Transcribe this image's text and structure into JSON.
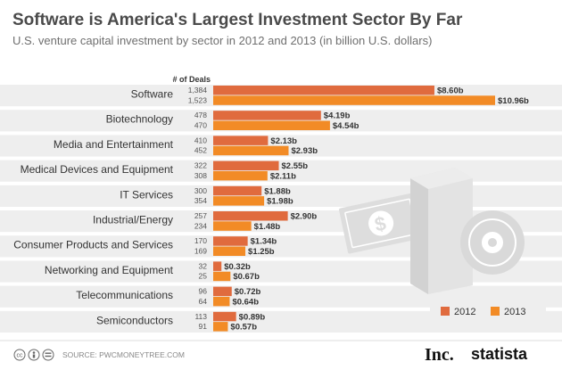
{
  "colors": {
    "s2012": "#e06b3e",
    "s2013": "#f28b26",
    "band": "#eeeeee",
    "icon": "#dddddd",
    "icon_dark": "#cfcfcf"
  },
  "footer": {
    "source": "SOURCE: PWCMONEYTREE.COM",
    "inc_logo": "Inc.",
    "statista_logo": "statista",
    "cc_icons": [
      "creative-commons-icon",
      "attribution-icon",
      "no-derivatives-icon"
    ]
  },
  "chart_data": {
    "type": "bar",
    "orientation": "horizontal",
    "title": "Software is America's Largest Investment Sector By Far",
    "subtitle": "U.S. venture capital investment by sector in 2012 and 2013 (in billion U.S. dollars)",
    "deals_header": "# of Deals",
    "xlim": [
      0,
      11
    ],
    "categories": [
      "Software",
      "Biotechnology",
      "Media and Entertainment",
      "Medical Devices and Equipment",
      "IT Services",
      "Industrial/Energy",
      "Consumer Products and Services",
      "Networking and Equipment",
      "Telecommunications",
      "Semiconductors"
    ],
    "series": [
      {
        "name": "2012",
        "color": "#e06b3e",
        "values": [
          8.6,
          4.19,
          2.13,
          2.55,
          1.88,
          2.9,
          1.34,
          0.32,
          0.72,
          0.89
        ],
        "labels": [
          "$8.60b",
          "$4.19b",
          "$2.13b",
          "$2.55b",
          "$1.88b",
          "$2.90b",
          "$1.34b",
          "$0.32b",
          "$0.72b",
          "$0.89b"
        ],
        "deals": [
          "1,384",
          "478",
          "410",
          "322",
          "300",
          "257",
          "170",
          "32",
          "96",
          "113"
        ]
      },
      {
        "name": "2013",
        "color": "#f28b26",
        "values": [
          10.96,
          4.54,
          2.93,
          2.11,
          1.98,
          1.48,
          1.25,
          0.67,
          0.64,
          0.57
        ],
        "labels": [
          "$10.96b",
          "$4.54b",
          "$2.93b",
          "$2.11b",
          "$1.98b",
          "$1.48b",
          "$1.25b",
          "$0.67b",
          "$0.64b",
          "$0.57b"
        ],
        "deals": [
          "1,523",
          "470",
          "452",
          "308",
          "354",
          "234",
          "169",
          "25",
          "64",
          "91"
        ]
      }
    ],
    "legend": {
      "position": "bottom-right",
      "entries": [
        "2012",
        "2013"
      ]
    }
  }
}
